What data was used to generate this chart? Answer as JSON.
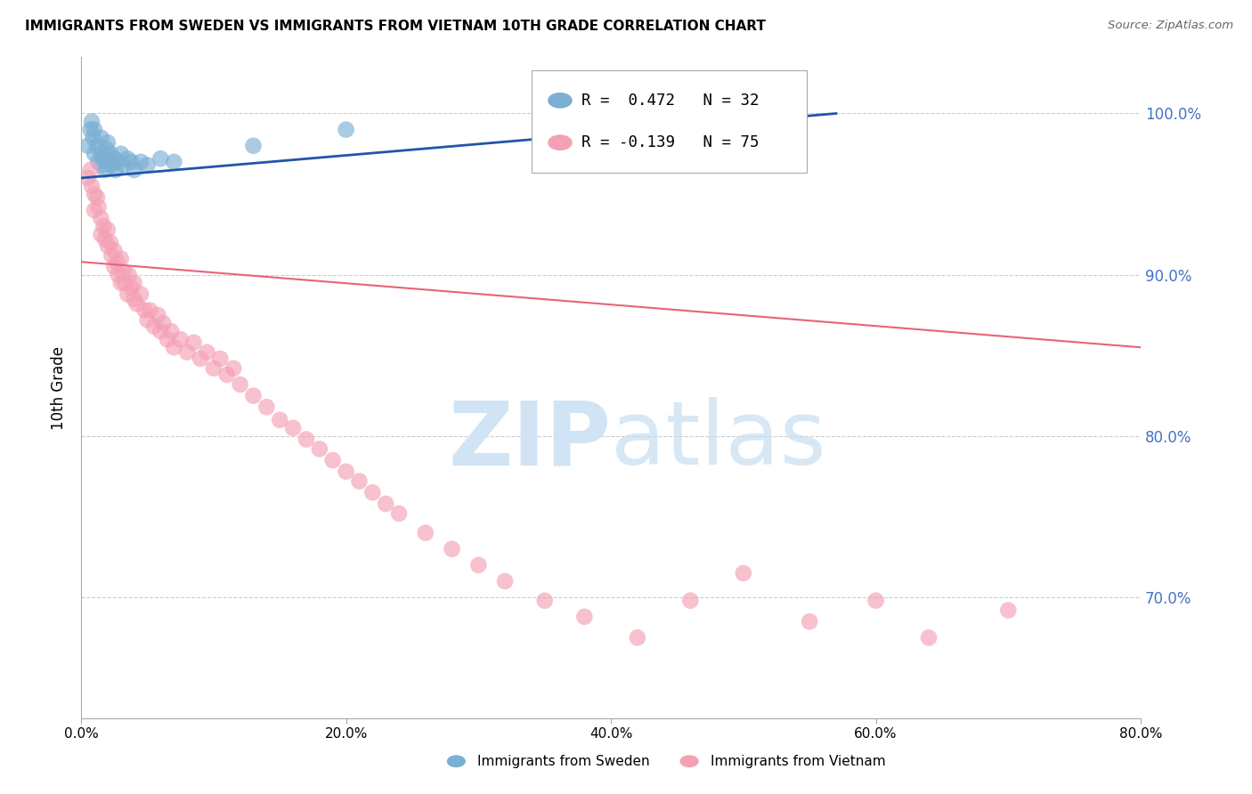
{
  "title": "IMMIGRANTS FROM SWEDEN VS IMMIGRANTS FROM VIETNAM 10TH GRADE CORRELATION CHART",
  "source": "Source: ZipAtlas.com",
  "ylabel": "10th Grade",
  "xlim": [
    0.0,
    0.8
  ],
  "ylim": [
    0.625,
    1.035
  ],
  "xlabel_vals": [
    0.0,
    0.2,
    0.4,
    0.6,
    0.8
  ],
  "ylabel_vals": [
    0.7,
    0.8,
    0.9,
    1.0
  ],
  "sweden_R": 0.472,
  "sweden_N": 32,
  "vietnam_R": -0.139,
  "vietnam_N": 75,
  "sweden_color": "#7bafd4",
  "vietnam_color": "#f4a0b5",
  "sweden_line_color": "#2255aa",
  "vietnam_line_color": "#e8637a",
  "watermark_zip": "ZIP",
  "watermark_atlas": "atlas",
  "watermark_color": "#d0e4f5",
  "sweden_x": [
    0.005,
    0.007,
    0.008,
    0.009,
    0.01,
    0.01,
    0.012,
    0.013,
    0.015,
    0.015,
    0.016,
    0.017,
    0.018,
    0.019,
    0.02,
    0.02,
    0.022,
    0.023,
    0.025,
    0.026,
    0.028,
    0.03,
    0.032,
    0.035,
    0.038,
    0.04,
    0.045,
    0.05,
    0.06,
    0.07,
    0.13,
    0.2
  ],
  "sweden_y": [
    0.98,
    0.99,
    0.995,
    0.985,
    0.975,
    0.99,
    0.98,
    0.97,
    0.985,
    0.975,
    0.968,
    0.972,
    0.965,
    0.978,
    0.97,
    0.982,
    0.975,
    0.968,
    0.972,
    0.965,
    0.97,
    0.975,
    0.968,
    0.972,
    0.97,
    0.965,
    0.97,
    0.968,
    0.972,
    0.97,
    0.98,
    0.99
  ],
  "vietnam_x": [
    0.005,
    0.007,
    0.008,
    0.01,
    0.01,
    0.012,
    0.013,
    0.015,
    0.015,
    0.017,
    0.018,
    0.02,
    0.02,
    0.022,
    0.023,
    0.025,
    0.025,
    0.027,
    0.028,
    0.03,
    0.03,
    0.032,
    0.033,
    0.035,
    0.036,
    0.038,
    0.04,
    0.04,
    0.042,
    0.045,
    0.048,
    0.05,
    0.052,
    0.055,
    0.058,
    0.06,
    0.062,
    0.065,
    0.068,
    0.07,
    0.075,
    0.08,
    0.085,
    0.09,
    0.095,
    0.1,
    0.105,
    0.11,
    0.115,
    0.12,
    0.13,
    0.14,
    0.15,
    0.16,
    0.17,
    0.18,
    0.19,
    0.2,
    0.21,
    0.22,
    0.23,
    0.24,
    0.26,
    0.28,
    0.3,
    0.32,
    0.35,
    0.38,
    0.42,
    0.46,
    0.5,
    0.55,
    0.6,
    0.64,
    0.7
  ],
  "vietnam_y": [
    0.96,
    0.965,
    0.955,
    0.95,
    0.94,
    0.948,
    0.942,
    0.935,
    0.925,
    0.93,
    0.922,
    0.918,
    0.928,
    0.92,
    0.912,
    0.905,
    0.915,
    0.908,
    0.9,
    0.91,
    0.895,
    0.902,
    0.895,
    0.888,
    0.9,
    0.892,
    0.885,
    0.895,
    0.882,
    0.888,
    0.878,
    0.872,
    0.878,
    0.868,
    0.875,
    0.865,
    0.87,
    0.86,
    0.865,
    0.855,
    0.86,
    0.852,
    0.858,
    0.848,
    0.852,
    0.842,
    0.848,
    0.838,
    0.842,
    0.832,
    0.825,
    0.818,
    0.81,
    0.805,
    0.798,
    0.792,
    0.785,
    0.778,
    0.772,
    0.765,
    0.758,
    0.752,
    0.74,
    0.73,
    0.72,
    0.71,
    0.698,
    0.688,
    0.675,
    0.698,
    0.715,
    0.685,
    0.698,
    0.675,
    0.692
  ],
  "sweden_line_x0": 0.0,
  "sweden_line_y0": 0.96,
  "sweden_line_x1": 0.57,
  "sweden_line_y1": 1.0,
  "vietnam_line_x0": 0.0,
  "vietnam_line_y0": 0.908,
  "vietnam_line_x1": 0.8,
  "vietnam_line_y1": 0.855
}
